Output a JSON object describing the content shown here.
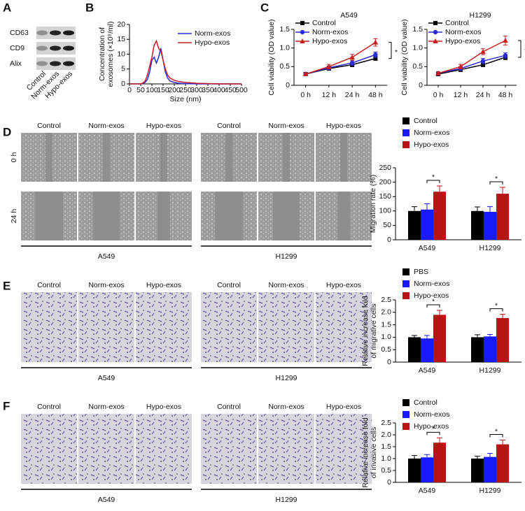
{
  "figure": {
    "panel_labels": [
      "A",
      "B",
      "C",
      "D",
      "E",
      "F"
    ],
    "blot": {
      "bands": [
        "CD63",
        "CD9",
        "Alix"
      ],
      "lanes": [
        "Control",
        "Norm-exos",
        "Hypo-exos"
      ]
    },
    "panel_d": {
      "columns": [
        "Control",
        "Norm-exos",
        "Hypo-exos"
      ],
      "rows": [
        "0 h",
        "24 h"
      ],
      "cell_lines": [
        "A549",
        "H1299"
      ]
    },
    "panel_e": {
      "columns": [
        "Control",
        "Norm-exos",
        "Hypo-exos"
      ],
      "cell_lines": [
        "A549",
        "H1299"
      ]
    },
    "panel_f": {
      "columns": [
        "Control",
        "Norm-exos",
        "Hypo-exos"
      ],
      "cell_lines": [
        "A549",
        "H1299"
      ]
    }
  },
  "chart_data": [
    {
      "type": "line",
      "xlabel": "Size (nm)",
      "ylabel": [
        "Concentration of",
        "exosomes (×10⁸/ml)"
      ],
      "x": [
        0,
        50,
        60,
        70,
        80,
        90,
        100,
        110,
        120,
        130,
        140,
        150,
        160,
        170,
        180,
        200,
        220,
        250,
        300,
        400,
        500
      ],
      "xlim": [
        0,
        500
      ],
      "xticks": [
        0,
        50,
        100,
        150,
        200,
        250,
        300,
        350,
        400,
        450,
        500
      ],
      "ylim": [
        0,
        20
      ],
      "yticks": [
        0,
        5,
        10,
        15,
        20
      ],
      "legend": "upper right",
      "series": [
        {
          "name": "Norm-exos",
          "color": "#2b2bd9",
          "values": [
            0,
            0,
            0.2,
            0.5,
            1.5,
            4,
            8,
            9,
            7,
            9,
            12,
            8,
            4,
            2,
            1,
            0.5,
            0.2,
            0.1,
            0,
            0,
            0
          ]
        },
        {
          "name": "Hypo-exos",
          "color": "#c81e1e",
          "values": [
            0,
            0,
            0.3,
            1,
            3,
            6,
            9,
            13,
            14.5,
            12,
            11,
            8,
            5,
            3,
            2,
            1.2,
            0.8,
            0.5,
            0.2,
            0,
            0
          ]
        }
      ]
    },
    {
      "type": "errorline",
      "title": "A549",
      "ylabel": "Cell viability (OD value)",
      "categories": [
        "0 h",
        "12 h",
        "24 h",
        "48 h"
      ],
      "ylim": [
        0,
        1.5
      ],
      "yticks": [
        0,
        0.5,
        {
          "value": 1,
          "label": "1.0"
        },
        1.5
      ],
      "legend": "upper left",
      "significance": "*",
      "series": [
        {
          "name": "Control",
          "color": "#000000",
          "marker": "square",
          "values": [
            0.3,
            0.45,
            0.55,
            0.72
          ],
          "errors": [
            0.03,
            0.05,
            0.05,
            0.05
          ]
        },
        {
          "name": "Norm-exos",
          "color": "#2b2bd9",
          "marker": "circle",
          "values": [
            0.3,
            0.47,
            0.6,
            0.82
          ],
          "errors": [
            0.03,
            0.05,
            0.06,
            0.07
          ]
        },
        {
          "name": "Hypo-exos",
          "color": "#c81e1e",
          "marker": "triangle",
          "values": [
            0.3,
            0.5,
            0.75,
            1.15
          ],
          "errors": [
            0.03,
            0.06,
            0.08,
            0.1
          ]
        }
      ]
    },
    {
      "type": "errorline",
      "title": "H1299",
      "ylabel": "Cell viability (OD value)",
      "categories": [
        "0 h",
        "12 h",
        "24 h",
        "48 h"
      ],
      "ylim": [
        0,
        1.5
      ],
      "yticks": [
        0,
        0.5,
        {
          "value": 1,
          "label": "1.0"
        },
        1.5
      ],
      "legend": "upper left",
      "significance": "*",
      "series": [
        {
          "name": "Control",
          "color": "#000000",
          "marker": "square",
          "values": [
            0.3,
            0.42,
            0.55,
            0.75
          ],
          "errors": [
            0.03,
            0.05,
            0.05,
            0.06
          ]
        },
        {
          "name": "Norm-exos",
          "color": "#2b2bd9",
          "marker": "circle",
          "values": [
            0.32,
            0.45,
            0.65,
            0.8
          ],
          "errors": [
            0.04,
            0.05,
            0.07,
            0.07
          ]
        },
        {
          "name": "Hypo-exos",
          "color": "#c81e1e",
          "marker": "triangle",
          "values": [
            0.32,
            0.5,
            0.9,
            1.2
          ],
          "errors": [
            0.04,
            0.06,
            0.08,
            0.12
          ]
        }
      ]
    },
    {
      "type": "bar",
      "ylabel": [
        "Migration rate (%)"
      ],
      "categories": [
        "A549",
        "H1299"
      ],
      "ylim": [
        0,
        250
      ],
      "yticks": [
        0,
        50,
        100,
        150,
        200,
        250
      ],
      "legend": "top",
      "significance": "*",
      "series": [
        {
          "name": "Control",
          "color": "#000000",
          "values": [
            100,
            100
          ],
          "errors": [
            15,
            14
          ]
        },
        {
          "name": "Norm-exos",
          "color": "#1a1aff",
          "values": [
            105,
            97
          ],
          "errors": [
            20,
            18
          ]
        },
        {
          "name": "Hypo-exos",
          "color": "#b81414",
          "values": [
            167,
            160
          ],
          "errors": [
            20,
            22
          ]
        }
      ]
    },
    {
      "type": "bar",
      "ylabel": [
        "Relative increase fold",
        "of migrative cells"
      ],
      "categories": [
        "A549",
        "H1299"
      ],
      "ylim": [
        0,
        2.5
      ],
      "yticks": [
        0,
        0.5,
        {
          "value": 1,
          "label": "1.0"
        },
        1.5,
        {
          "value": 2,
          "label": "2.0"
        },
        2.5
      ],
      "legend": "top",
      "significance": "*",
      "series": [
        {
          "name": "PBS",
          "color": "#000000",
          "values": [
            1.0,
            1.0
          ],
          "errors": [
            0.07,
            0.1
          ]
        },
        {
          "name": "Norm-exos",
          "color": "#1a1aff",
          "values": [
            0.95,
            1.03
          ],
          "errors": [
            0.12,
            0.08
          ]
        },
        {
          "name": "Hypo-exos",
          "color": "#b81414",
          "values": [
            1.9,
            1.77
          ],
          "errors": [
            0.18,
            0.15
          ]
        }
      ]
    },
    {
      "type": "bar",
      "ylabel": [
        "Relative increase fold",
        "of invasive cells"
      ],
      "categories": [
        "A549",
        "H1299"
      ],
      "ylim": [
        0,
        2.5
      ],
      "yticks": [
        0,
        0.5,
        {
          "value": 1,
          "label": "1.0"
        },
        1.5,
        {
          "value": 2,
          "label": "2.0"
        },
        2.5
      ],
      "legend": "top",
      "significance": "*",
      "series": [
        {
          "name": "Control",
          "color": "#000000",
          "values": [
            1.0,
            1.0
          ],
          "errors": [
            0.13,
            0.1
          ]
        },
        {
          "name": "Norm-exos",
          "color": "#1a1aff",
          "values": [
            1.05,
            1.07
          ],
          "errors": [
            0.12,
            0.15
          ]
        },
        {
          "name": "Hypo-exos",
          "color": "#b81414",
          "values": [
            1.67,
            1.6
          ],
          "errors": [
            0.2,
            0.18
          ]
        }
      ]
    }
  ]
}
